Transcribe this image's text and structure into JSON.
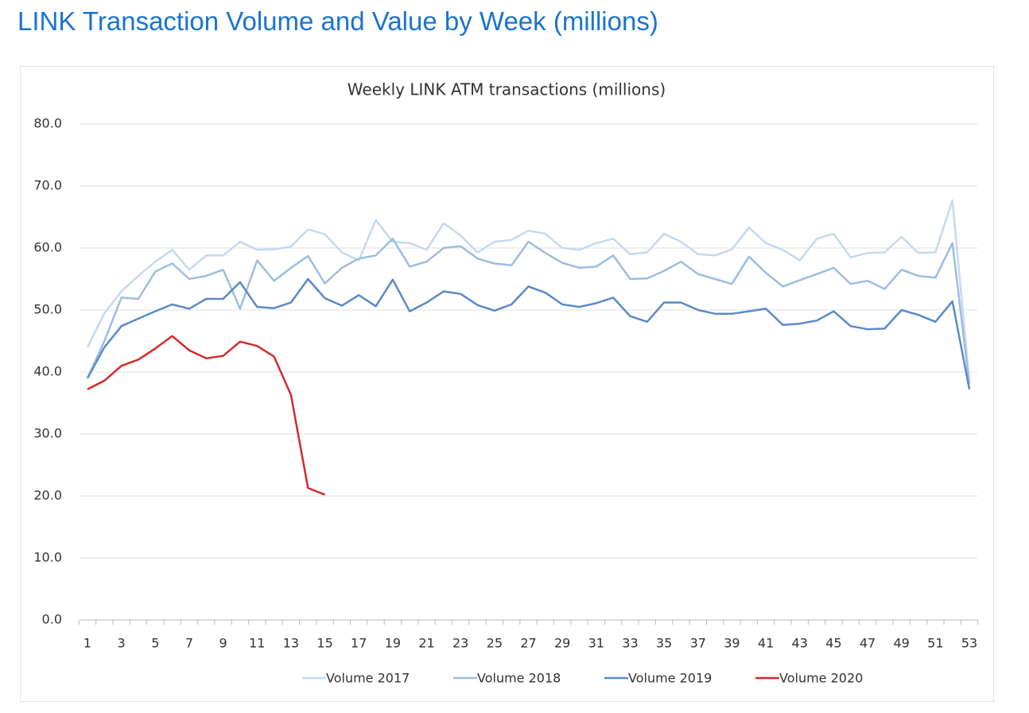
{
  "page_title": "LINK Transaction Volume and Value by Week (millions)",
  "chart_data": {
    "type": "line",
    "title": "Weekly LINK ATM transactions (millions)",
    "categories": [
      1,
      null,
      3,
      null,
      5,
      null,
      7,
      null,
      9,
      null,
      11,
      null,
      13,
      null,
      15,
      null,
      17,
      null,
      19,
      null,
      21,
      null,
      23,
      null,
      25,
      null,
      27,
      null,
      29,
      null,
      31,
      null,
      33,
      null,
      35,
      null,
      37,
      null,
      39,
      null,
      41,
      null,
      43,
      null,
      45,
      null,
      47,
      null,
      49,
      null,
      51,
      null,
      53
    ],
    "series": [
      {
        "name": "Volume 2017",
        "color": "#c6d9ee",
        "values": [
          44,
          49.5,
          53,
          55.5,
          57.8,
          59.7,
          56.5,
          58.8,
          58.8,
          61,
          59.7,
          59.8,
          60.2,
          63,
          62.2,
          59.3,
          58,
          64.5,
          61,
          60.8,
          59.7,
          64,
          62,
          59.3,
          61,
          61.3,
          62.8,
          62.3,
          60,
          59.7,
          60.8,
          61.5,
          59,
          59.3,
          62.3,
          61,
          59,
          58.8,
          59.8,
          63.3,
          60.8,
          59.7,
          58,
          61.5,
          62.3,
          58.5,
          59.2,
          59.3,
          61.8,
          59.2,
          59.3,
          67.7,
          38.5
        ]
      },
      {
        "name": "Volume 2018",
        "color": "#9dbde0",
        "values": [
          39,
          45,
          52,
          51.8,
          56.2,
          57.5,
          55,
          55.5,
          56.5,
          50.2,
          58,
          54.7,
          56.8,
          58.7,
          54.3,
          56.8,
          58.3,
          58.8,
          61.5,
          57,
          57.8,
          60,
          60.3,
          58.3,
          57.5,
          57.2,
          61,
          59.2,
          57.6,
          56.8,
          57,
          58.8,
          55,
          55.1,
          56.3,
          57.8,
          55.8,
          55,
          54.2,
          58.6,
          56,
          53.8,
          54.8,
          55.8,
          56.8,
          54.2,
          54.7,
          53.4,
          56.5,
          55.5,
          55.2,
          60.8,
          38
        ]
      },
      {
        "name": "Volume 2019",
        "color": "#5b8ac7",
        "values": [
          39,
          44,
          47.4,
          48.6,
          49.8,
          50.9,
          50.2,
          51.8,
          51.8,
          54.5,
          50.5,
          50.3,
          51.2,
          55,
          51.9,
          50.7,
          52.4,
          50.6,
          54.9,
          49.8,
          51.2,
          53,
          52.6,
          50.8,
          49.9,
          50.9,
          53.8,
          52.8,
          50.9,
          50.5,
          51.1,
          52,
          49,
          48.1,
          51.2,
          51.2,
          50,
          49.4,
          49.4,
          49.8,
          50.2,
          47.6,
          47.8,
          48.3,
          49.8,
          47.4,
          46.9,
          47,
          50,
          49.2,
          48.1,
          51.4,
          37.2
        ]
      },
      {
        "name": "Volume 2020",
        "color": "#d62a2a",
        "values": [
          37.2,
          38.6,
          41,
          42,
          43.8,
          45.8,
          43.5,
          42.2,
          42.6,
          44.9,
          44.2,
          42.5,
          36.3,
          21.3,
          20.2,
          null,
          null,
          null,
          null,
          null,
          null,
          null,
          null,
          null,
          null,
          null,
          null,
          null,
          null,
          null,
          null,
          null,
          null,
          null,
          null,
          null,
          null,
          null,
          null,
          null,
          null,
          null,
          null,
          null,
          null,
          null,
          null,
          null,
          null,
          null,
          null,
          null,
          null
        ]
      }
    ],
    "ylim": [
      0,
      80
    ],
    "yticks": [
      {
        "value": 0,
        "label": "0.0"
      },
      {
        "value": 10,
        "label": "10.0"
      },
      {
        "value": 20,
        "label": "20.0"
      },
      {
        "value": 30,
        "label": "30.0"
      },
      {
        "value": 40,
        "label": "40.0"
      },
      {
        "value": 50,
        "label": "50.0"
      },
      {
        "value": 60,
        "label": "60.0"
      },
      {
        "value": 70,
        "label": "70.0"
      },
      {
        "value": 80,
        "label": "80.0"
      }
    ],
    "grid": true,
    "legend": "bottom"
  }
}
